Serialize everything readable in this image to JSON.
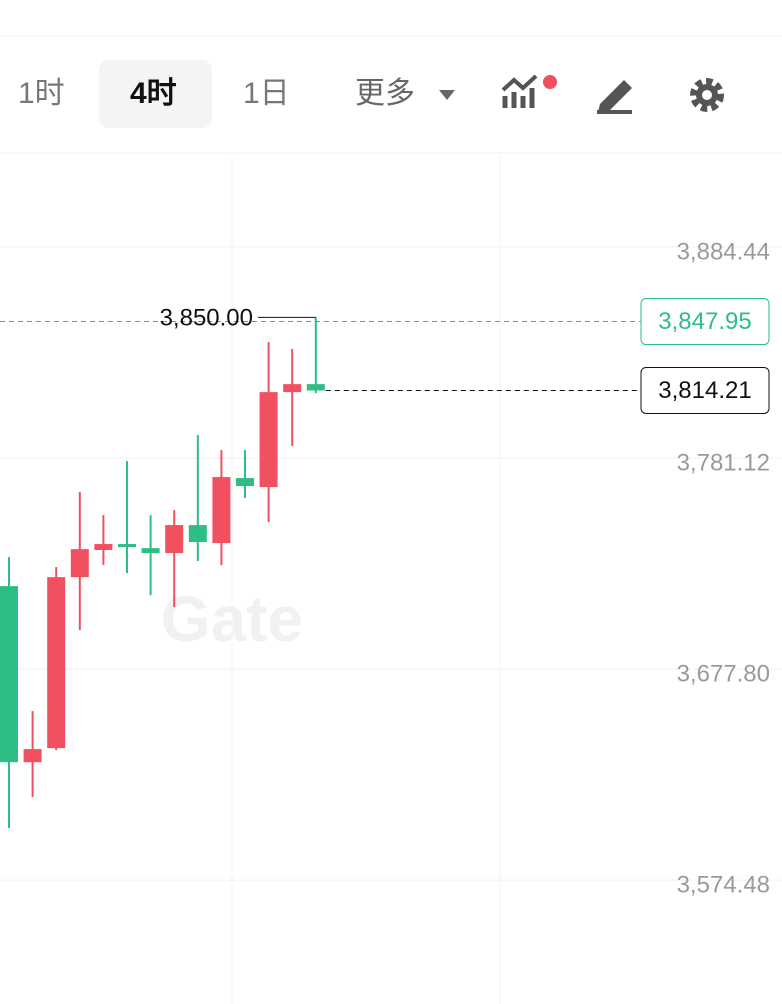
{
  "toolbar": {
    "tabs": [
      "1时",
      "4时",
      "1日"
    ],
    "selected": 1,
    "more": "更多"
  },
  "chart_data": {
    "type": "candlestick",
    "watermark": "Gate",
    "up_color": "#f0505f",
    "down_color": "#2ebd85",
    "categories": [
      null,
      null,
      null,
      null,
      null,
      null,
      null,
      null,
      null,
      null,
      null,
      null,
      null,
      null
    ],
    "open": [
      3718.4,
      3632.2,
      3639.1,
      3722.8,
      3736.1,
      3739.0,
      3737.0,
      3734.6,
      3748.3,
      3739.5,
      3771.3,
      3766.9,
      3813.4,
      3817.3
    ],
    "high": [
      3732.6,
      3657.2,
      3727.7,
      3764.5,
      3753.2,
      3779.6,
      3753.2,
      3755.6,
      3792.4,
      3785.0,
      3785.0,
      3837.9,
      3834.5,
      3850.0
    ],
    "low": [
      3599.9,
      3615.1,
      3638.1,
      3696.9,
      3728.7,
      3724.8,
      3714.0,
      3708.1,
      3730.7,
      3728.7,
      3761.5,
      3749.8,
      3787.0,
      3812.9
    ],
    "close": [
      3632.2,
      3638.6,
      3722.8,
      3736.5,
      3739.0,
      3737.5,
      3734.6,
      3748.3,
      3740.0,
      3771.8,
      3767.4,
      3813.4,
      3817.3,
      3814.21
    ],
    "ylim": [
      3513.8,
      3929.5
    ],
    "yticks": [
      {
        "value": 3574.48,
        "label": "3,574.48"
      },
      {
        "value": 3677.8,
        "label": "3,677.80"
      },
      {
        "value": 3781.12,
        "label": "3,781.12"
      },
      {
        "value": 3884.44,
        "label": "3,884.44"
      }
    ],
    "grid": true,
    "annotations": [
      {
        "value": 3850.0,
        "label": "3,850.00"
      }
    ],
    "price_lines": [
      {
        "value": 3847.95,
        "label": "3,847.95",
        "color": "#2ebd85"
      },
      {
        "value": 3814.21,
        "label": "3,814.21",
        "color": "#111111"
      }
    ]
  }
}
